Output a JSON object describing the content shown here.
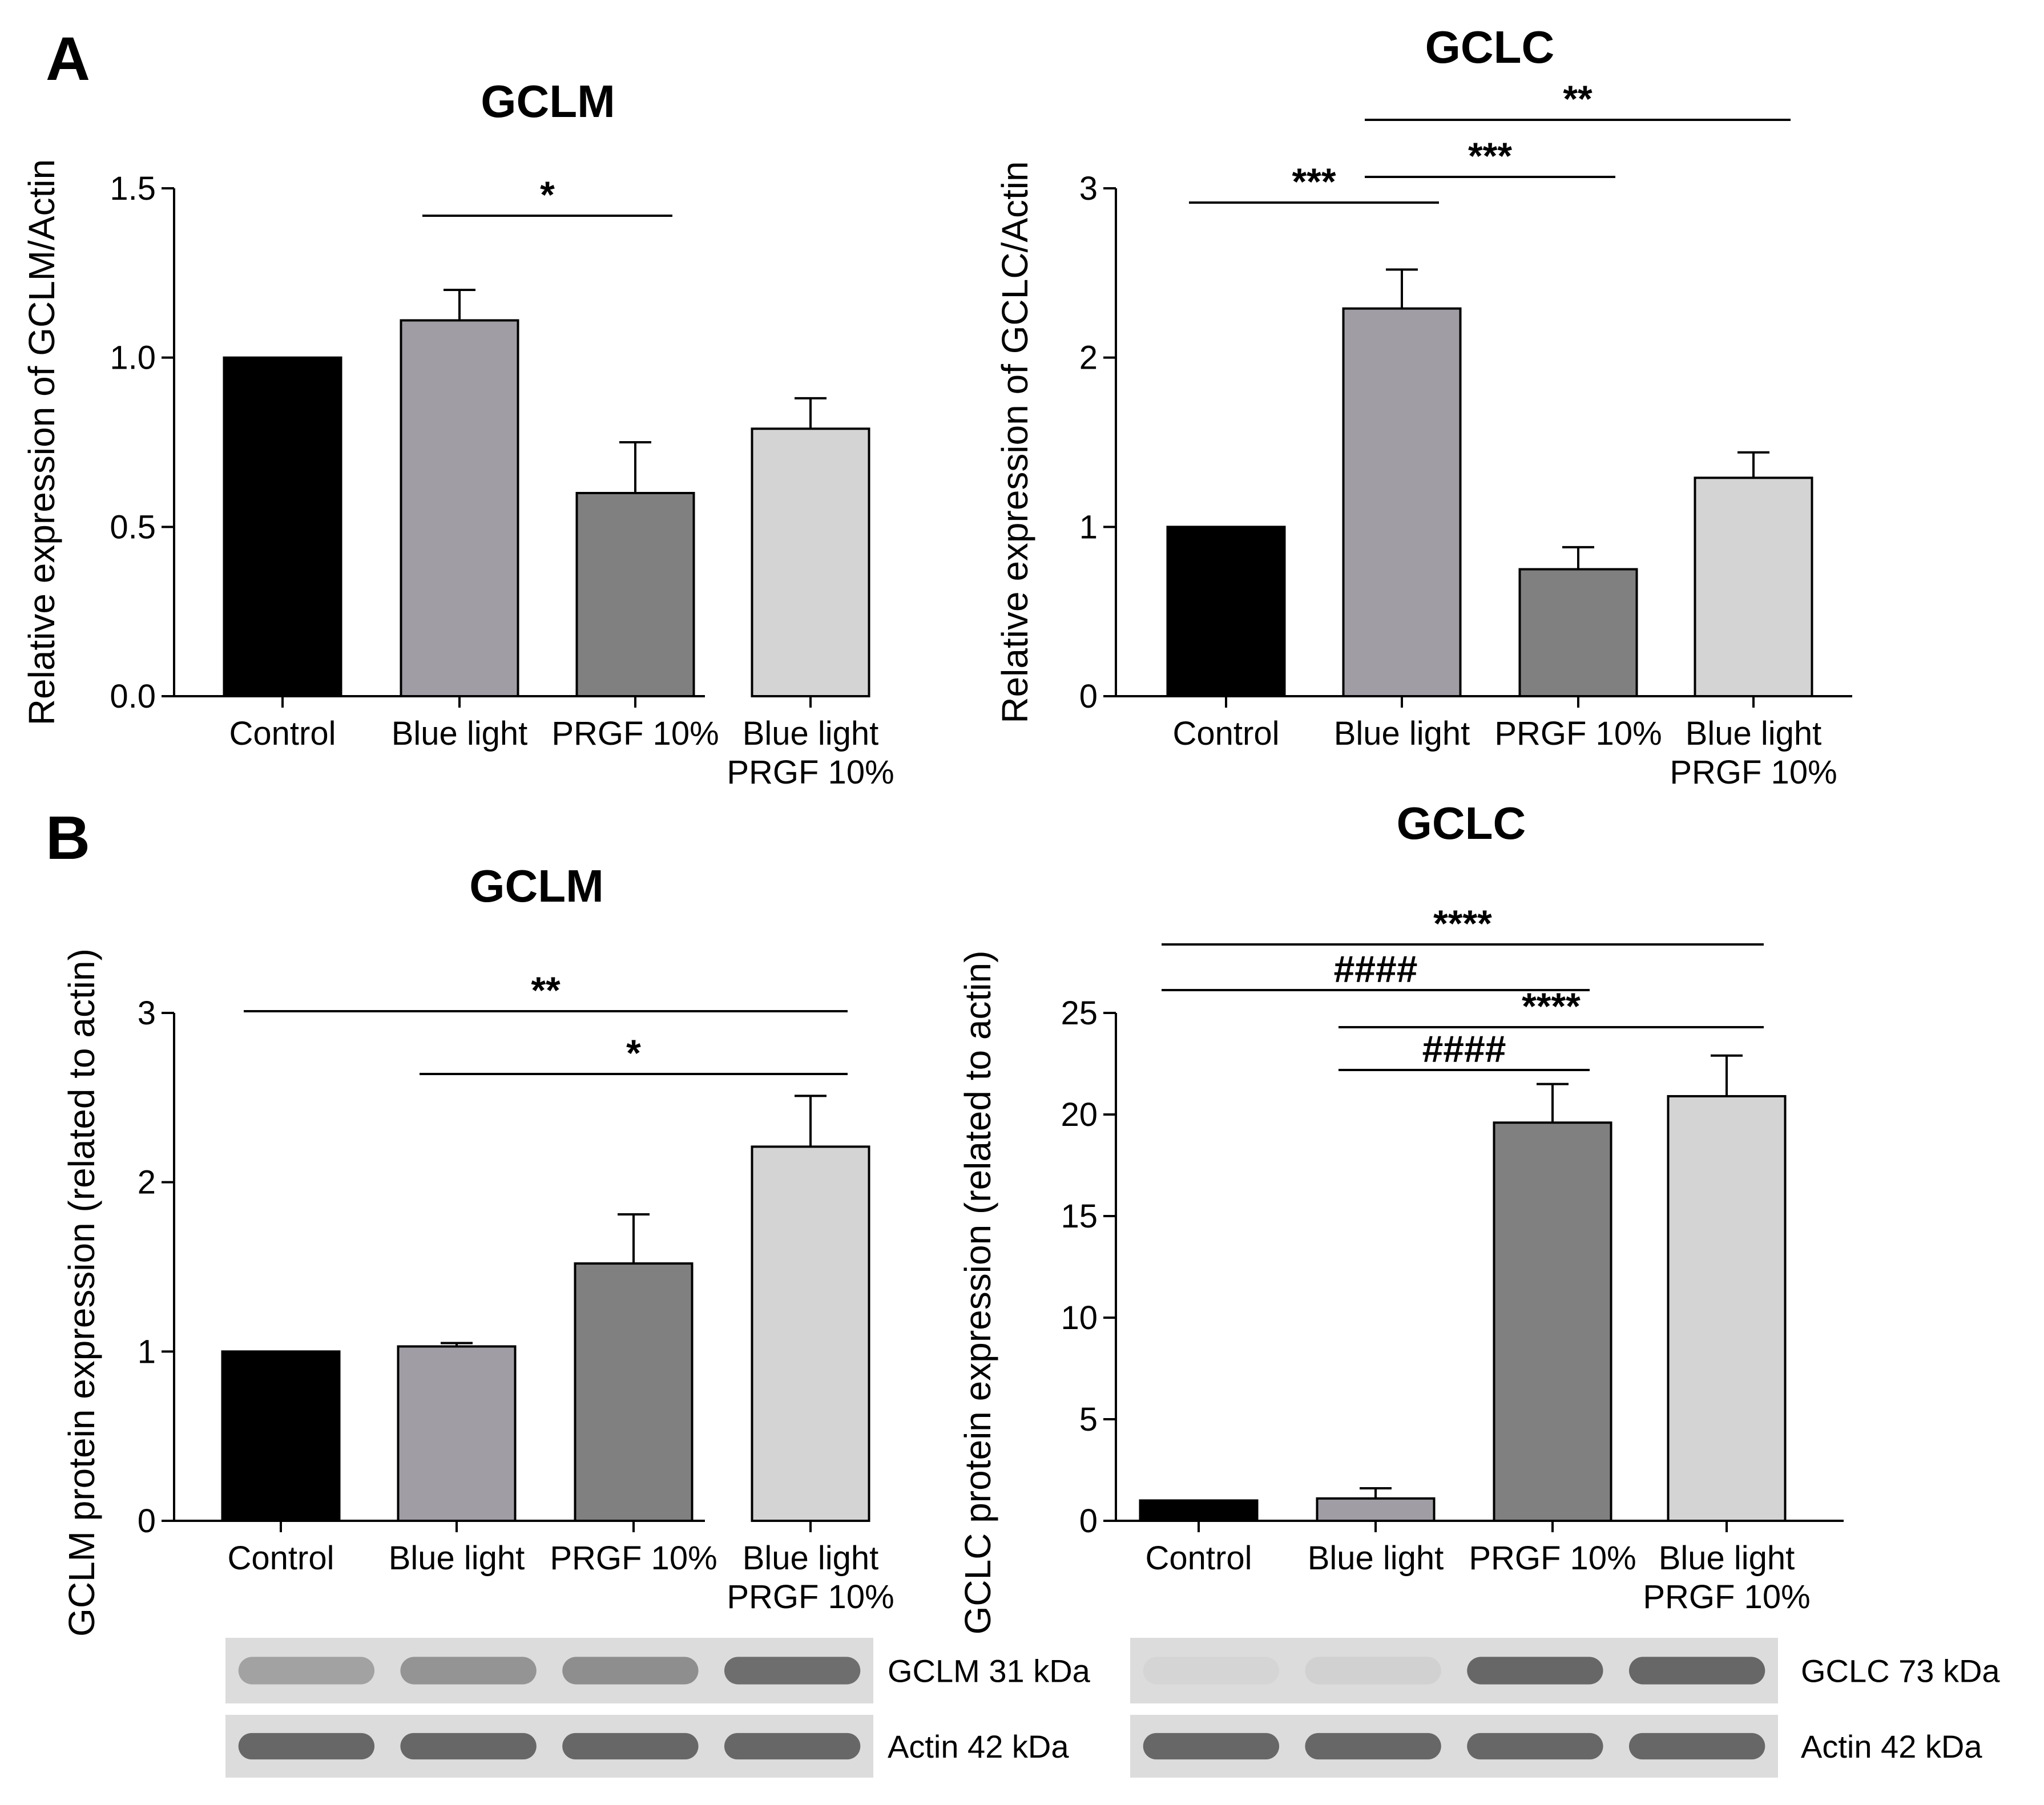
{
  "colors": {
    "Control": "#000000",
    "Blue light": "#a09ea4",
    "PRGF 10%": "#808080",
    "Blue light PRGF 10%": "#d4d4d4",
    "axis": "#000000",
    "blot_bg": "#dcdcdc",
    "blot_band": "#5a5a5a"
  },
  "chart_data": [
    {
      "type": "bar",
      "panel": "A",
      "title": "GCLM",
      "ylabel": "Relative expression of GCLM/Actin",
      "xlabel": "",
      "categories": [
        "Control",
        "Blue light",
        "PRGF 10%",
        "Blue light\nPRGF 10%"
      ],
      "values": [
        1.0,
        1.11,
        0.6,
        0.79
      ],
      "errors": [
        0.0,
        0.09,
        0.15,
        0.09
      ],
      "ylim": [
        0,
        1.5
      ],
      "yticks": [
        "0.0",
        "0.5",
        "1.0",
        "1.5"
      ],
      "yticks_values": [
        0,
        0.5,
        1.0,
        1.5
      ],
      "significance": [
        {
          "from": 1,
          "to": 2,
          "label": "*"
        }
      ]
    },
    {
      "type": "bar",
      "panel": "",
      "title": "GCLC",
      "ylabel": "Relative expression of GCLC/Actin",
      "xlabel": "",
      "categories": [
        "Control",
        "Blue light",
        "PRGF 10%",
        "Blue light\nPRGF 10%"
      ],
      "values": [
        1.0,
        2.29,
        0.75,
        1.29
      ],
      "errors": [
        0.0,
        0.23,
        0.13,
        0.15
      ],
      "ylim": [
        0,
        3
      ],
      "yticks": [
        "0",
        "1",
        "2",
        "3"
      ],
      "yticks_values": [
        0,
        1,
        2,
        3
      ],
      "significance": [
        {
          "from": 0,
          "to": 1,
          "label": "***"
        },
        {
          "from": 1,
          "to": 2,
          "label": "***"
        },
        {
          "from": 1,
          "to": 3,
          "label": "**"
        }
      ]
    },
    {
      "type": "bar",
      "panel": "B",
      "title": "GCLM",
      "ylabel": "GCLM protein expression (related to actin)",
      "xlabel": "",
      "categories": [
        "Control",
        "Blue light",
        "PRGF 10%",
        "Blue light\nPRGF 10%"
      ],
      "values": [
        1.0,
        1.03,
        1.52,
        2.21
      ],
      "errors": [
        0.0,
        0.02,
        0.29,
        0.3
      ],
      "ylim": [
        0,
        3
      ],
      "yticks": [
        "0",
        "1",
        "2",
        "3"
      ],
      "yticks_values": [
        0,
        1,
        2,
        3
      ],
      "significance": [
        {
          "from": 0,
          "to": 3,
          "label": "**"
        },
        {
          "from": 1,
          "to": 3,
          "label": "*"
        }
      ],
      "blot": {
        "bands": [
          {
            "label": "GCLM 31 kDa",
            "intensity": [
              0.45,
              0.55,
              0.6,
              0.85
            ]
          },
          {
            "label": "Actin 42 kDa",
            "intensity": [
              0.9,
              0.9,
              0.9,
              0.9
            ]
          }
        ]
      }
    },
    {
      "type": "bar",
      "panel": "",
      "title": "GCLC",
      "ylabel": "GCLC protein expression (related to actin)",
      "xlabel": "",
      "categories": [
        "Control",
        "Blue light",
        "PRGF 10%",
        "Blue light\nPRGF 10%"
      ],
      "values": [
        1.0,
        1.1,
        19.6,
        20.9
      ],
      "errors": [
        0.0,
        0.5,
        1.9,
        2.0
      ],
      "ylim": [
        0,
        25
      ],
      "yticks": [
        "0",
        "5",
        "10",
        "15",
        "20",
        "25"
      ],
      "yticks_values": [
        0,
        5,
        10,
        15,
        20,
        25
      ],
      "significance": [
        {
          "from": 0,
          "to": 3,
          "label": "****"
        },
        {
          "from": 0,
          "to": 2,
          "label": "####"
        },
        {
          "from": 1,
          "to": 3,
          "label": "****"
        },
        {
          "from": 1,
          "to": 2,
          "label": "####"
        }
      ],
      "blot": {
        "bands": [
          {
            "label": "GCLC 73 kDa",
            "intensity": [
              0.05,
              0.08,
              0.9,
              0.9
            ]
          },
          {
            "label": "Actin 42 kDa",
            "intensity": [
              0.9,
              0.9,
              0.9,
              0.9
            ]
          }
        ]
      }
    }
  ]
}
